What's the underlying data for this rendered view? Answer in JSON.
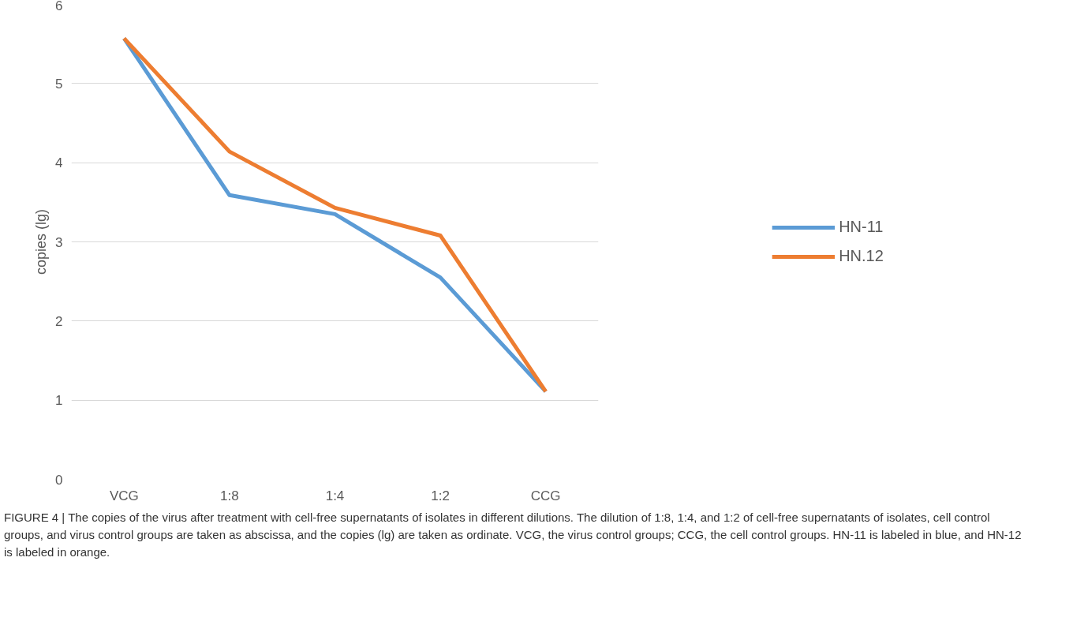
{
  "chart_data": {
    "type": "line",
    "ylabel": "copies (lg)",
    "categories": [
      "VCG",
      "1:8",
      "1:4",
      "1:2",
      "CCG"
    ],
    "series": [
      {
        "name": "HN-11",
        "color": "#5b9bd5",
        "values": [
          5.57,
          3.59,
          3.35,
          2.55,
          1.11
        ]
      },
      {
        "name": "HN.12",
        "color": "#ed7d31",
        "values": [
          5.57,
          4.14,
          3.43,
          3.08,
          1.11
        ]
      }
    ],
    "ylim": [
      0,
      6
    ],
    "yticks": [
      0,
      1,
      2,
      3,
      4,
      5,
      6
    ],
    "grid": "y",
    "legend": "right",
    "marker": "none",
    "line_style": "solid",
    "annotations": [
      "FIGURE 4 | The copies of the virus after treatment with cell-free supernatants of isolates in different dilutions. The dilution of 1:8, 1:4, and 1:2 of cell-free supernatants of isolates, cell control groups, and virus control groups are taken as abscissa, and the copies (lg) are taken as ordinate. VCG, the virus control groups; CCG, the cell control groups. HN-11 is labeled in blue, and HN-12 is labeled in orange."
    ]
  }
}
